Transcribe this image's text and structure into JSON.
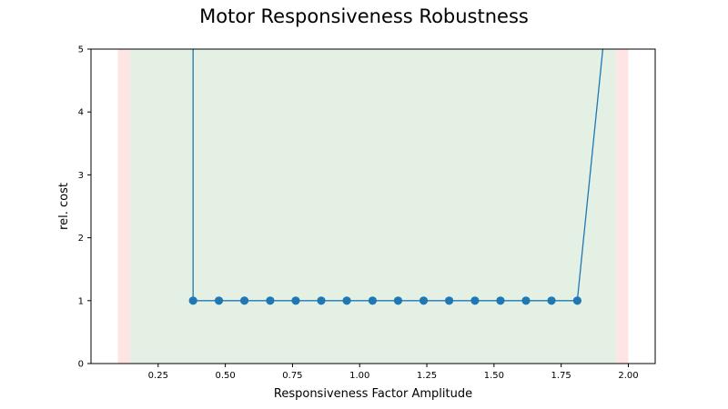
{
  "chart_data": {
    "type": "line",
    "title": "Motor Responsiveness Robustness",
    "xlabel": "Responsiveness Factor Amplitude",
    "ylabel": "rel. cost",
    "xlim": [
      0.0,
      2.1
    ],
    "ylim": [
      0,
      5
    ],
    "xticks": [
      "0.25",
      "0.50",
      "0.75",
      "1.00",
      "1.25",
      "1.50",
      "1.75",
      "2.00"
    ],
    "yticks": [
      "0",
      "1",
      "2",
      "3",
      "4",
      "5"
    ],
    "grid": false,
    "series": [
      {
        "color": "#1f77b4",
        "x": [
          0.38,
          0.38,
          0.476,
          0.571,
          0.667,
          0.762,
          0.857,
          0.952,
          1.048,
          1.143,
          1.238,
          1.333,
          1.429,
          1.524,
          1.619,
          1.714,
          1.81,
          1.905
        ],
        "y": [
          5.0,
          1,
          1,
          1,
          1,
          1,
          1,
          1,
          1,
          1,
          1,
          1,
          1,
          1,
          1,
          1,
          1,
          5.0
        ],
        "marker_mask": [
          false,
          true,
          true,
          true,
          true,
          true,
          true,
          true,
          true,
          true,
          true,
          true,
          true,
          true,
          true,
          true,
          true,
          false
        ]
      }
    ],
    "bands": [
      {
        "x": [
          0.1,
          0.145
        ],
        "color": "#ffe4e4",
        "meaning": "unstable"
      },
      {
        "x": [
          0.145,
          1.955
        ],
        "color": "#e4f0e4",
        "meaning": "stable"
      },
      {
        "x": [
          1.955,
          2.0
        ],
        "color": "#ffe4e4",
        "meaning": "unstable"
      }
    ]
  }
}
